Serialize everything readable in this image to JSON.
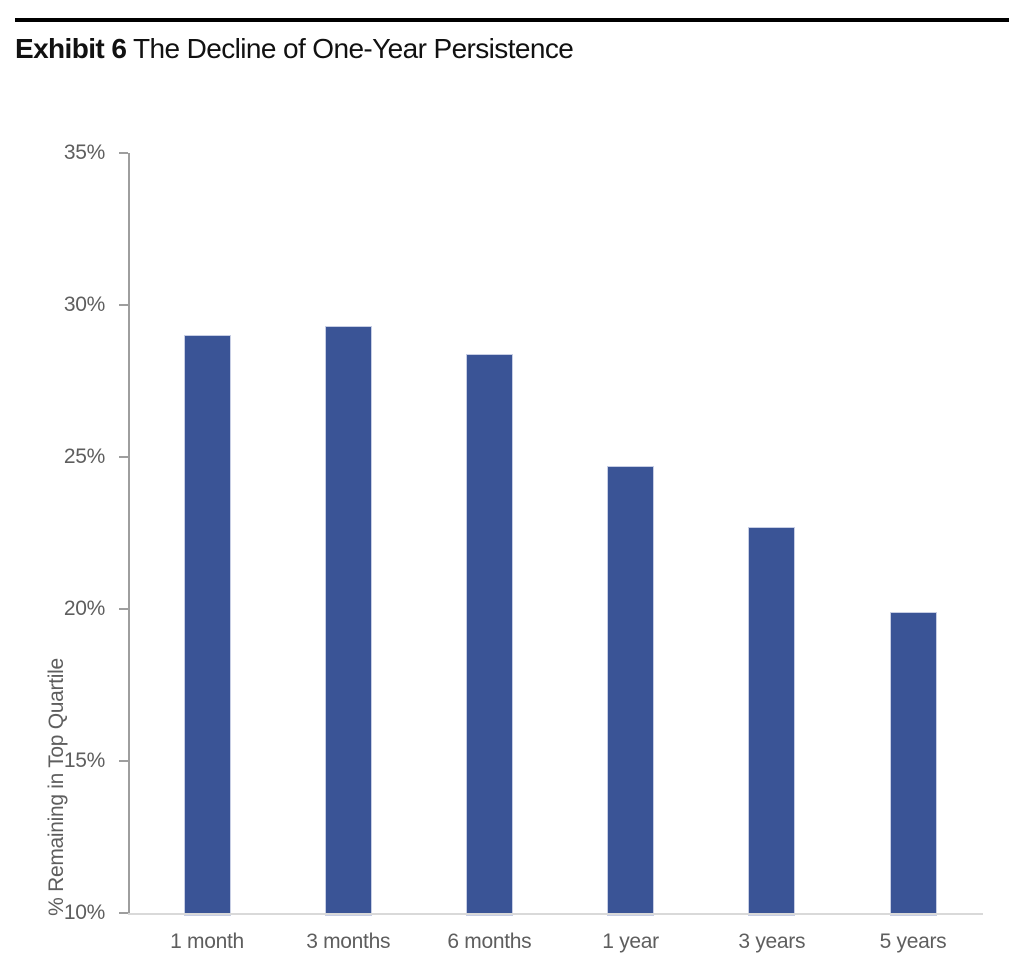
{
  "header": {
    "exhibit_label": "Exhibit 6",
    "title": "The Decline of One-Year Persistence"
  },
  "chart_data": {
    "type": "bar",
    "title": "Exhibit 6 The Decline of One-Year Persistence",
    "categories": [
      "1 month",
      "3 months",
      "6 months",
      "1 year",
      "3 years",
      "5 years"
    ],
    "values": [
      29.0,
      29.3,
      28.4,
      24.7,
      22.7,
      19.9
    ],
    "xlabel": "",
    "ylabel": "% Remaining in Top Quartile",
    "ylim": [
      10,
      35
    ],
    "ytick_step": 5,
    "ytick_labels": [
      "10%",
      "15%",
      "20%",
      "25%",
      "30%",
      "35%"
    ],
    "grid": false,
    "legend": null,
    "colors": {
      "bar_fill": "#3a5496",
      "bar_border": "#c7cee4",
      "axis_text": "#5e5e5e",
      "axis_line": "#9e9e9e",
      "baseline": "#d9d9d9",
      "title_text": "#111111",
      "top_rule": "#000000"
    }
  }
}
